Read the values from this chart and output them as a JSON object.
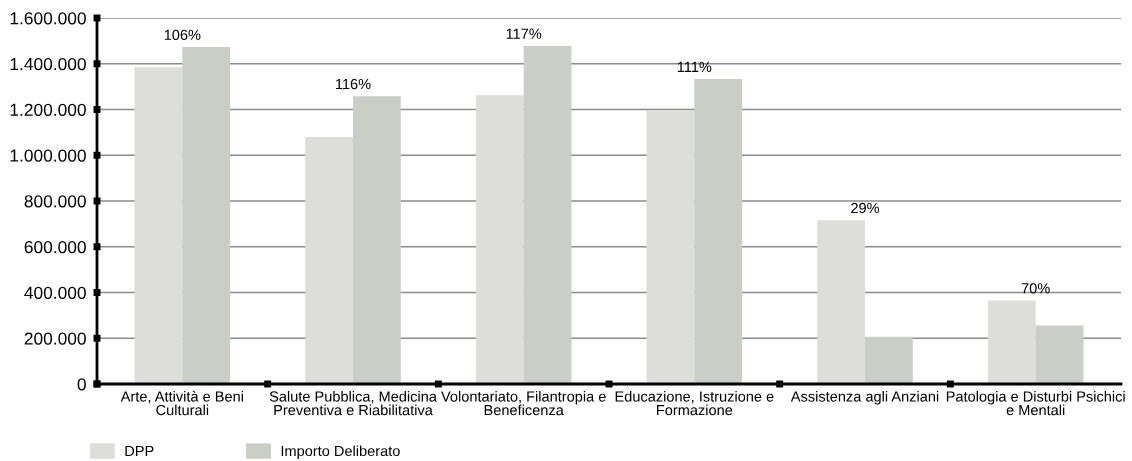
{
  "chart_data": {
    "type": "bar",
    "categories": [
      "Arte, Attività e Beni\nCulturali",
      "Salute Pubblica, Medicina\nPreventiva e Riabilitativa",
      "Volontariato, Filantropia e\nBeneficenza",
      "Educazione, Istruzione e\nFormazione",
      "Assistenza agli Anziani",
      "Patologia e Disturbi Psichici\ne Mentali"
    ],
    "series": [
      {
        "name": "DPP",
        "color": "#dddeda",
        "values": [
          1385000,
          1080000,
          1262000,
          1197000,
          716000,
          365000
        ]
      },
      {
        "name": "Importo Deliberato",
        "color": "#cbcdc7",
        "values": [
          1473000,
          1258000,
          1478000,
          1333000,
          207000,
          256000
        ]
      }
    ],
    "ylim": [
      0,
      1600000
    ],
    "yticks": [
      0,
      {
        "value": 200000,
        "label": "200.000"
      },
      {
        "value": 400000,
        "label": "400.000"
      },
      {
        "value": 600000,
        "label": "600.000"
      },
      {
        "value": 800000,
        "label": "800.000"
      },
      {
        "value": 1000000,
        "label": "1.000.000"
      },
      {
        "value": 1200000,
        "label": "1.200.000"
      },
      {
        "value": 1400000,
        "label": "1.400.000"
      },
      {
        "value": 1600000,
        "label": "1.600.000"
      }
    ],
    "annotations": [
      {
        "text": "106%",
        "x": "Arte, Attività e Beni\nCulturali",
        "y": 1473000
      },
      {
        "text": "116%",
        "x": "Salute Pubblica, Medicina\nPreventiva e Riabilitativa",
        "y": 1258000
      },
      {
        "text": "117%",
        "x": "Volontariato, Filantropia e\nBeneficenza",
        "y": 1478000
      },
      {
        "text": "111%",
        "x": "Educazione, Istruzione e\nFormazione",
        "y": 1333000
      },
      {
        "text": "29%",
        "x": "Assistenza agli Anziani",
        "y": 716000
      },
      {
        "text": "70%",
        "x": "Patologia e Disturbi Psichici\ne Mentali",
        "y": 365000
      }
    ],
    "grid": "y",
    "legend": "bottom left"
  }
}
